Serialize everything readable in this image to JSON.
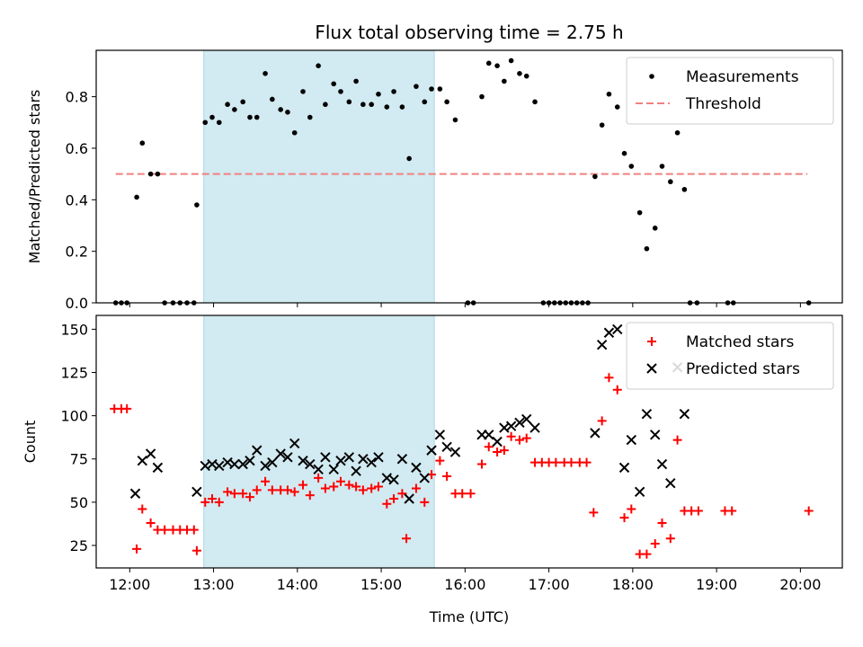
{
  "chart_data": {
    "type": "scatter",
    "title": "Flux total observing time = 2.75 h",
    "xlabel": "Time (UTC)",
    "x_ticks": [
      "12:00",
      "13:00",
      "14:00",
      "15:00",
      "16:00",
      "17:00",
      "18:00",
      "19:00",
      "20:00"
    ],
    "xlim": [
      11.6,
      20.5
    ],
    "shaded_interval": [
      "12:53",
      "15:38"
    ],
    "shade_color": "#add8e6",
    "panels": [
      {
        "ylabel": "Matched/Predicted stars",
        "ylim": [
          0,
          0.98
        ],
        "yticks": [
          "0.0",
          "0.2",
          "0.4",
          "0.6",
          "0.8"
        ],
        "legend_position": "top-right",
        "threshold": {
          "name": "Threshold",
          "value": 0.5,
          "x_range": [
            "11:50",
            "20:05"
          ],
          "color": "#f08080",
          "style": "dashed"
        },
        "series": [
          {
            "name": "Measurements",
            "marker": "dot",
            "color": "#000000",
            "points": [
              [
                "11:50",
                0
              ],
              [
                "11:54",
                0
              ],
              [
                "11:58",
                0
              ],
              [
                "12:05",
                0.41
              ],
              [
                "12:09",
                0.62
              ],
              [
                "12:15",
                0.5
              ],
              [
                "12:20",
                0.5
              ],
              [
                "12:25",
                0
              ],
              [
                "12:31",
                0
              ],
              [
                "12:36",
                0
              ],
              [
                "12:41",
                0
              ],
              [
                "12:46",
                0
              ],
              [
                "12:48",
                0.38
              ],
              [
                "12:54",
                0.7
              ],
              [
                "12:59",
                0.72
              ],
              [
                "13:04",
                0.7
              ],
              [
                "13:10",
                0.77
              ],
              [
                "13:15",
                0.75
              ],
              [
                "13:21",
                0.78
              ],
              [
                "13:26",
                0.72
              ],
              [
                "13:31",
                0.72
              ],
              [
                "13:37",
                0.89
              ],
              [
                "13:42",
                0.79
              ],
              [
                "13:48",
                0.75
              ],
              [
                "13:53",
                0.74
              ],
              [
                "13:58",
                0.66
              ],
              [
                "14:04",
                0.82
              ],
              [
                "14:09",
                0.72
              ],
              [
                "14:15",
                0.92
              ],
              [
                "14:20",
                0.77
              ],
              [
                "14:26",
                0.85
              ],
              [
                "14:31",
                0.82
              ],
              [
                "14:37",
                0.78
              ],
              [
                "14:42",
                0.86
              ],
              [
                "14:47",
                0.77
              ],
              [
                "14:53",
                0.77
              ],
              [
                "14:58",
                0.81
              ],
              [
                "15:04",
                0.76
              ],
              [
                "15:09",
                0.82
              ],
              [
                "15:15",
                0.76
              ],
              [
                "15:20",
                0.56
              ],
              [
                "15:25",
                0.84
              ],
              [
                "15:31",
                0.78
              ],
              [
                "15:36",
                0.83
              ],
              [
                "15:42",
                0.83
              ],
              [
                "15:47",
                0.78
              ],
              [
                "15:53",
                0.71
              ],
              [
                "16:02",
                0
              ],
              [
                "16:06",
                0
              ],
              [
                "16:12",
                0.8
              ],
              [
                "16:17",
                0.93
              ],
              [
                "16:23",
                0.92
              ],
              [
                "16:28",
                0.86
              ],
              [
                "16:33",
                0.94
              ],
              [
                "16:39",
                0.89
              ],
              [
                "16:44",
                0.88
              ],
              [
                "16:50",
                0.78
              ],
              [
                "16:56",
                0
              ],
              [
                "17:00",
                0
              ],
              [
                "17:04",
                0
              ],
              [
                "17:08",
                0
              ],
              [
                "17:12",
                0
              ],
              [
                "17:16",
                0
              ],
              [
                "17:20",
                0
              ],
              [
                "17:24",
                0
              ],
              [
                "17:28",
                0
              ],
              [
                "17:33",
                0.49
              ],
              [
                "17:38",
                0.69
              ],
              [
                "17:43",
                0.81
              ],
              [
                "17:49",
                0.76
              ],
              [
                "17:54",
                0.58
              ],
              [
                "17:59",
                0.53
              ],
              [
                "18:05",
                0.35
              ],
              [
                "18:10",
                0.21
              ],
              [
                "18:16",
                0.29
              ],
              [
                "18:21",
                0.53
              ],
              [
                "18:27",
                0.47
              ],
              [
                "18:32",
                0.66
              ],
              [
                "18:37",
                0.44
              ],
              [
                "18:41",
                0
              ],
              [
                "18:46",
                0
              ],
              [
                "19:08",
                0
              ],
              [
                "19:12",
                0
              ],
              [
                "20:06",
                0
              ]
            ]
          }
        ]
      },
      {
        "ylabel": "Count",
        "ylim": [
          12,
          158
        ],
        "yticks": [
          "25",
          "50",
          "75",
          "100",
          "125",
          "150"
        ],
        "legend_position": "top-right",
        "series": [
          {
            "name": "Matched stars",
            "marker": "plus",
            "color": "#ff0000",
            "points": [
              [
                "11:49",
                104
              ],
              [
                "11:54",
                104
              ],
              [
                "11:58",
                104
              ],
              [
                "12:05",
                23
              ],
              [
                "12:09",
                46
              ],
              [
                "12:15",
                38
              ],
              [
                "12:20",
                34
              ],
              [
                "12:25",
                34
              ],
              [
                "12:31",
                34
              ],
              [
                "12:36",
                34
              ],
              [
                "12:41",
                34
              ],
              [
                "12:46",
                34
              ],
              [
                "12:48",
                22
              ],
              [
                "12:54",
                50
              ],
              [
                "12:59",
                52
              ],
              [
                "13:04",
                50
              ],
              [
                "13:10",
                56
              ],
              [
                "13:15",
                55
              ],
              [
                "13:21",
                55
              ],
              [
                "13:26",
                53
              ],
              [
                "13:31",
                57
              ],
              [
                "13:37",
                62
              ],
              [
                "13:42",
                57
              ],
              [
                "13:48",
                57
              ],
              [
                "13:53",
                57
              ],
              [
                "13:58",
                56
              ],
              [
                "14:04",
                60
              ],
              [
                "14:09",
                54
              ],
              [
                "14:15",
                64
              ],
              [
                "14:20",
                58
              ],
              [
                "14:26",
                59
              ],
              [
                "14:31",
                62
              ],
              [
                "14:37",
                60
              ],
              [
                "14:42",
                59
              ],
              [
                "14:47",
                57
              ],
              [
                "14:53",
                58
              ],
              [
                "14:58",
                59
              ],
              [
                "15:04",
                49
              ],
              [
                "15:09",
                52
              ],
              [
                "15:15",
                55
              ],
              [
                "15:18",
                29
              ],
              [
                "15:25",
                58
              ],
              [
                "15:31",
                50
              ],
              [
                "15:36",
                66
              ],
              [
                "15:42",
                74
              ],
              [
                "15:47",
                65
              ],
              [
                "15:53",
                55
              ],
              [
                "15:58",
                55
              ],
              [
                "16:04",
                55
              ],
              [
                "16:12",
                72
              ],
              [
                "16:17",
                82
              ],
              [
                "16:23",
                79
              ],
              [
                "16:28",
                80
              ],
              [
                "16:33",
                88
              ],
              [
                "16:39",
                86
              ],
              [
                "16:44",
                87
              ],
              [
                "16:50",
                73
              ],
              [
                "16:55",
                73
              ],
              [
                "17:00",
                73
              ],
              [
                "17:05",
                73
              ],
              [
                "17:11",
                73
              ],
              [
                "17:16",
                73
              ],
              [
                "17:22",
                73
              ],
              [
                "17:27",
                73
              ],
              [
                "17:32",
                44
              ],
              [
                "17:38",
                97
              ],
              [
                "17:43",
                122
              ],
              [
                "17:49",
                115
              ],
              [
                "17:54",
                41
              ],
              [
                "17:59",
                46
              ],
              [
                "18:05",
                20
              ],
              [
                "18:10",
                20
              ],
              [
                "18:16",
                26
              ],
              [
                "18:21",
                38
              ],
              [
                "18:27",
                29
              ],
              [
                "18:32",
                86
              ],
              [
                "18:37",
                45
              ],
              [
                "18:42",
                45
              ],
              [
                "18:47",
                45
              ],
              [
                "19:06",
                45
              ],
              [
                "19:11",
                45
              ],
              [
                "20:06",
                45
              ]
            ]
          },
          {
            "name": "Predicted stars",
            "marker": "cross",
            "color": "#000000",
            "points": [
              [
                "12:04",
                55
              ],
              [
                "12:09",
                74
              ],
              [
                "12:15",
                78
              ],
              [
                "12:20",
                70
              ],
              [
                "12:48",
                56
              ],
              [
                "12:54",
                71
              ],
              [
                "12:59",
                72
              ],
              [
                "13:04",
                71
              ],
              [
                "13:10",
                73
              ],
              [
                "13:15",
                72
              ],
              [
                "13:21",
                72
              ],
              [
                "13:26",
                74
              ],
              [
                "13:31",
                80
              ],
              [
                "13:37",
                71
              ],
              [
                "13:42",
                73
              ],
              [
                "13:48",
                78
              ],
              [
                "13:53",
                76
              ],
              [
                "13:58",
                84
              ],
              [
                "14:04",
                74
              ],
              [
                "14:09",
                72
              ],
              [
                "14:15",
                69
              ],
              [
                "14:20",
                76
              ],
              [
                "14:26",
                69
              ],
              [
                "14:31",
                74
              ],
              [
                "14:37",
                76
              ],
              [
                "14:42",
                68
              ],
              [
                "14:47",
                75
              ],
              [
                "14:53",
                73
              ],
              [
                "14:58",
                76
              ],
              [
                "15:04",
                64
              ],
              [
                "15:09",
                63
              ],
              [
                "15:15",
                75
              ],
              [
                "15:20",
                52
              ],
              [
                "15:25",
                70
              ],
              [
                "15:31",
                64
              ],
              [
                "15:36",
                80
              ],
              [
                "15:42",
                89
              ],
              [
                "15:47",
                82
              ],
              [
                "15:53",
                79
              ],
              [
                "16:12",
                89
              ],
              [
                "16:17",
                89
              ],
              [
                "16:23",
                85
              ],
              [
                "16:28",
                93
              ],
              [
                "16:33",
                94
              ],
              [
                "16:39",
                96
              ],
              [
                "16:44",
                98
              ],
              [
                "16:50",
                93
              ],
              [
                "17:33",
                90
              ],
              [
                "17:38",
                141
              ],
              [
                "17:43",
                148
              ],
              [
                "17:49",
                150
              ],
              [
                "17:54",
                70
              ],
              [
                "17:59",
                86
              ],
              [
                "18:05",
                56
              ],
              [
                "18:10",
                101
              ],
              [
                "18:16",
                89
              ],
              [
                "18:21",
                72
              ],
              [
                "18:27",
                61
              ],
              [
                "18:32",
                128
              ],
              [
                "18:37",
                101
              ]
            ]
          }
        ]
      }
    ]
  }
}
